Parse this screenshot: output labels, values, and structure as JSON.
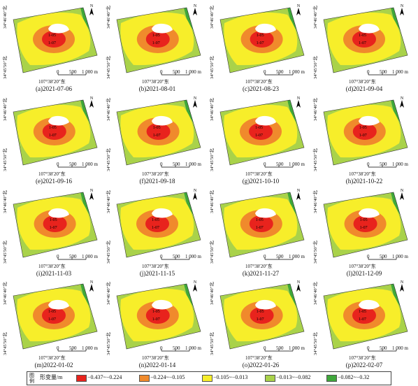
{
  "panels": [
    {
      "caption": "(a)2021-07-06"
    },
    {
      "caption": "(b)2021-08-01"
    },
    {
      "caption": "(c)2021-08-23"
    },
    {
      "caption": "(d)2021-09-04"
    },
    {
      "caption": "(e)2021-09-16"
    },
    {
      "caption": "(f)2021-09-18"
    },
    {
      "caption": "(g)2021-10-10"
    },
    {
      "caption": "(h)2021-10-22"
    },
    {
      "caption": "(i)2021-11-03"
    },
    {
      "caption": "(j)2021-11-15"
    },
    {
      "caption": "(k)2021-11-27"
    },
    {
      "caption": "(l)2021-12-09"
    },
    {
      "caption": "(m)2022-01-02"
    },
    {
      "caption": "(n)2022-01-14"
    },
    {
      "caption": "(o)2022-01-26"
    },
    {
      "caption": "(p)2022-02-07"
    }
  ],
  "map": {
    "lat_top": "34°46′40″北",
    "lat_bottom": "34°45′50″北",
    "lon": "107°38′20″东",
    "north": "N",
    "scale": {
      "t0": "0",
      "t1": "500",
      "t2": "1 000 m"
    },
    "points": [
      "1-05",
      "1-07"
    ]
  },
  "legend": {
    "title": "图例",
    "name": "形变量/m",
    "classes": [
      {
        "label": "−0.437~−0.224",
        "color": "#e8231d"
      },
      {
        "label": "−0.224~−0.105",
        "color": "#f08a2c"
      },
      {
        "label": "−0.105~−0.013",
        "color": "#f7ee2a"
      },
      {
        "label": "−0.013~−0.082",
        "color": "#a9d24a"
      },
      {
        "label": "−0.082~−0.32",
        "color": "#3fa73a"
      }
    ]
  }
}
